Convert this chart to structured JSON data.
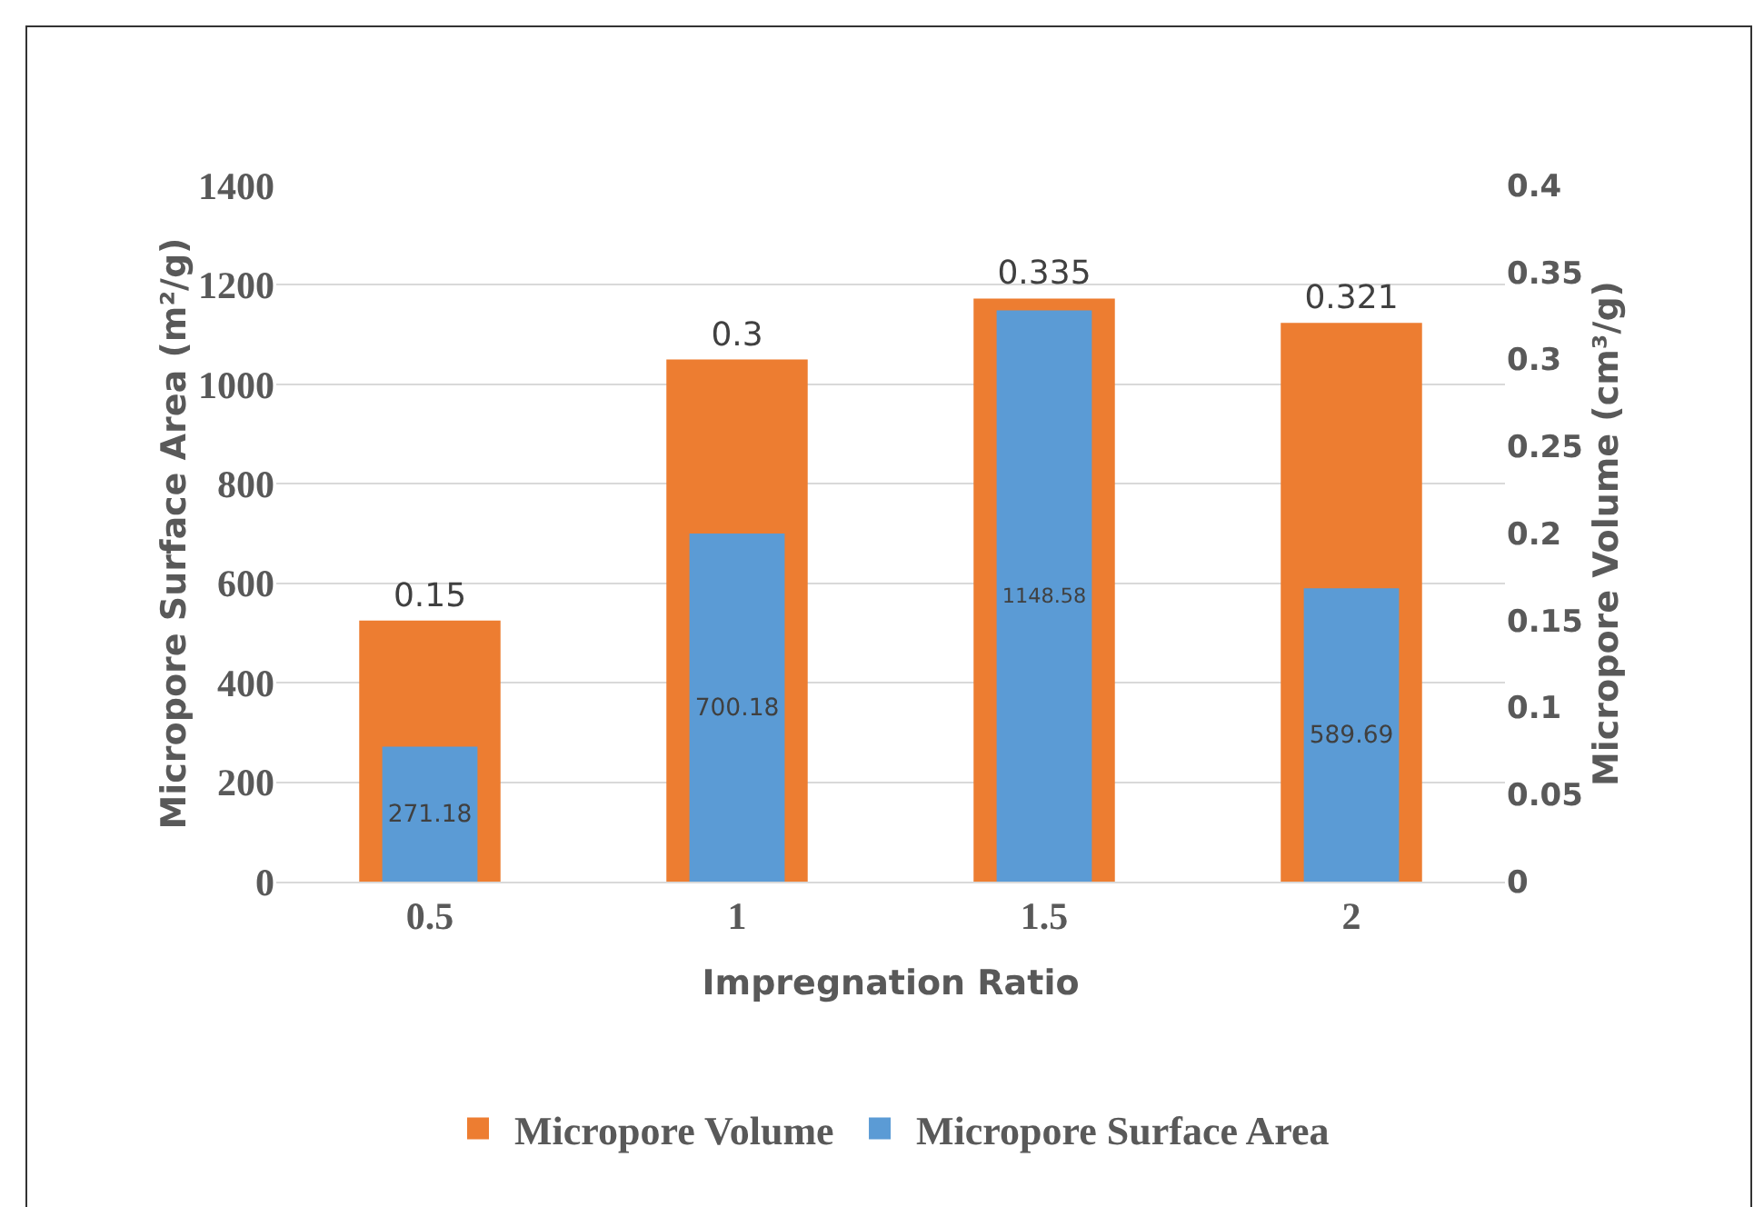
{
  "chart_data": {
    "type": "bar",
    "xlabel": "Impregnation Ratio",
    "ylabel": "Micropore Surface Area (m²/g)",
    "y2label": "Micropore Volume (cm³/g)",
    "categories": [
      "0.5",
      "1",
      "1.5",
      "2"
    ],
    "series": [
      {
        "name": "Micropore Volume",
        "color": "#ed7d31",
        "values": [
          0.15,
          0.3,
          0.335,
          0.321
        ],
        "axis": "y2"
      },
      {
        "name": "Micropore Surface Area",
        "color": "#5b9bd5",
        "values": [
          271.18,
          700.18,
          1148.58,
          589.69
        ],
        "axis": "y"
      }
    ],
    "ylim": [
      0,
      1400
    ],
    "yticks": [
      0,
      200,
      400,
      600,
      800,
      1000,
      1200,
      1400
    ],
    "y2lim": [
      0,
      0.4
    ],
    "y2ticks": [
      0,
      0.05,
      0.1,
      0.15,
      0.2,
      0.25,
      0.3,
      0.35,
      0.4
    ],
    "grid": "y",
    "legend": "bottom",
    "data_labels": true
  }
}
